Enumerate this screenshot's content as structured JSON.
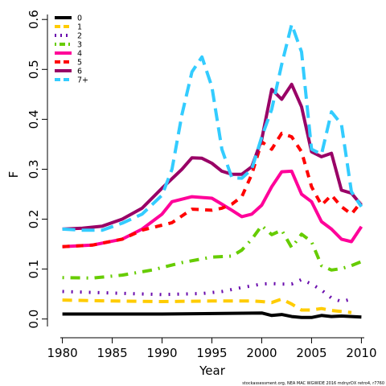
{
  "chart_data": {
    "type": "line",
    "xlabel": "Year",
    "ylabel": "F",
    "xlim": [
      1978.5,
      2011.5
    ],
    "ylim": [
      -0.015,
      0.61
    ],
    "xticks": [
      1980,
      1985,
      1990,
      1995,
      2000,
      2005,
      2010
    ],
    "yticks": [
      0.0,
      0.1,
      0.2,
      0.3,
      0.4,
      0.5,
      0.6
    ],
    "ytick_labels": [
      "0.0",
      "0.1",
      "0.2",
      "0.3",
      "0.4",
      "0.5",
      "0.6"
    ],
    "legend_position": "top-left",
    "footnote": "stockassessment.org, NEA MAC WGWIDE 2016 mdnyrDX retro4, r7760",
    "series": [
      {
        "name": "0",
        "color": "#000000",
        "dash": "solid",
        "x": [
          1980,
          1990,
          2000,
          2001,
          2002,
          2003,
          2004,
          2005,
          2006,
          2007,
          2008,
          2009,
          2010
        ],
        "y": [
          0.01,
          0.01,
          0.012,
          0.007,
          0.009,
          0.005,
          0.003,
          0.003,
          0.007,
          0.005,
          0.006,
          0.005,
          0.004
        ]
      },
      {
        "name": "1",
        "color": "#FFCC00",
        "dash": "long",
        "x": [
          1980,
          1985,
          1990,
          1995,
          1999,
          2000,
          2001,
          2002,
          2003,
          2004,
          2005,
          2006,
          2007,
          2008,
          2009
        ],
        "y": [
          0.038,
          0.036,
          0.035,
          0.036,
          0.036,
          0.035,
          0.033,
          0.04,
          0.03,
          0.018,
          0.018,
          0.021,
          0.017,
          0.015,
          0.013
        ]
      },
      {
        "name": "2",
        "color": "#6A0DAD",
        "dash": "dot",
        "x": [
          1980,
          1985,
          1990,
          1994,
          1996,
          1998,
          2000,
          2001,
          2002,
          2003,
          2004,
          2005,
          2006,
          2007,
          2008,
          2009
        ],
        "y": [
          0.055,
          0.052,
          0.049,
          0.051,
          0.055,
          0.063,
          0.07,
          0.071,
          0.07,
          0.07,
          0.079,
          0.07,
          0.058,
          0.042,
          0.035,
          0.04
        ]
      },
      {
        "name": "3",
        "color": "#66CC00",
        "dash": "dotdash",
        "x": [
          1980,
          1983,
          1986,
          1989,
          1992,
          1995,
          1997,
          1998,
          1999,
          2000,
          2001,
          2002,
          2003,
          2004,
          2005,
          2006,
          2007,
          2008,
          2009,
          2010
        ],
        "y": [
          0.083,
          0.082,
          0.088,
          0.098,
          0.113,
          0.124,
          0.126,
          0.138,
          0.16,
          0.187,
          0.169,
          0.178,
          0.143,
          0.17,
          0.155,
          0.107,
          0.098,
          0.101,
          0.107,
          0.115
        ]
      },
      {
        "name": "4",
        "color": "#FF0099",
        "dash": "solid",
        "x": [
          1980,
          1983,
          1986,
          1988,
          1990,
          1991,
          1993,
          1995,
          1996,
          1997,
          1998,
          1999,
          2000,
          2001,
          2002,
          2003,
          2004,
          2005,
          2006,
          2007,
          2008,
          2009,
          2010
        ],
        "y": [
          0.145,
          0.148,
          0.16,
          0.18,
          0.21,
          0.235,
          0.245,
          0.242,
          0.23,
          0.218,
          0.205,
          0.21,
          0.228,
          0.265,
          0.295,
          0.296,
          0.25,
          0.235,
          0.195,
          0.18,
          0.16,
          0.155,
          0.185
        ]
      },
      {
        "name": "5",
        "color": "#FF0000",
        "dash": "dash",
        "x": [
          1980,
          1983,
          1986,
          1988,
          1990,
          1991,
          1993,
          1995,
          1996,
          1997,
          1998,
          1999,
          2000,
          2001,
          2002,
          2003,
          2004,
          2005,
          2006,
          2007,
          2008,
          2009,
          2010
        ],
        "y": [
          0.145,
          0.148,
          0.16,
          0.178,
          0.188,
          0.193,
          0.22,
          0.218,
          0.222,
          0.23,
          0.245,
          0.29,
          0.355,
          0.34,
          0.372,
          0.365,
          0.335,
          0.265,
          0.228,
          0.248,
          0.225,
          0.21,
          0.235
        ]
      },
      {
        "name": "6",
        "color": "#990066",
        "dash": "solid",
        "x": [
          1980,
          1982,
          1984,
          1986,
          1988,
          1990,
          1992,
          1993,
          1994,
          1995,
          1996,
          1997,
          1998,
          1999,
          2000,
          2001,
          2002,
          2003,
          2004,
          2005,
          2006,
          2007,
          2008,
          2009,
          2010
        ],
        "y": [
          0.18,
          0.182,
          0.186,
          0.2,
          0.222,
          0.262,
          0.3,
          0.323,
          0.322,
          0.312,
          0.296,
          0.29,
          0.29,
          0.305,
          0.36,
          0.46,
          0.44,
          0.47,
          0.425,
          0.335,
          0.325,
          0.332,
          0.258,
          0.252,
          0.228
        ]
      },
      {
        "name": "7+",
        "color": "#33CCFF",
        "dash": "longdash",
        "x": [
          1980,
          1982,
          1984,
          1986,
          1988,
          1990,
          1991,
          1992,
          1993,
          1994,
          1995,
          1996,
          1997,
          1998,
          1999,
          2000,
          2001,
          2002,
          2003,
          2004,
          2005,
          2006,
          2007,
          2008,
          2009,
          2010
        ],
        "y": [
          0.18,
          0.178,
          0.178,
          0.192,
          0.21,
          0.248,
          0.3,
          0.41,
          0.495,
          0.525,
          0.465,
          0.34,
          0.283,
          0.282,
          0.3,
          0.365,
          0.42,
          0.51,
          0.59,
          0.535,
          0.34,
          0.33,
          0.415,
          0.39,
          0.255,
          0.225
        ]
      }
    ]
  }
}
